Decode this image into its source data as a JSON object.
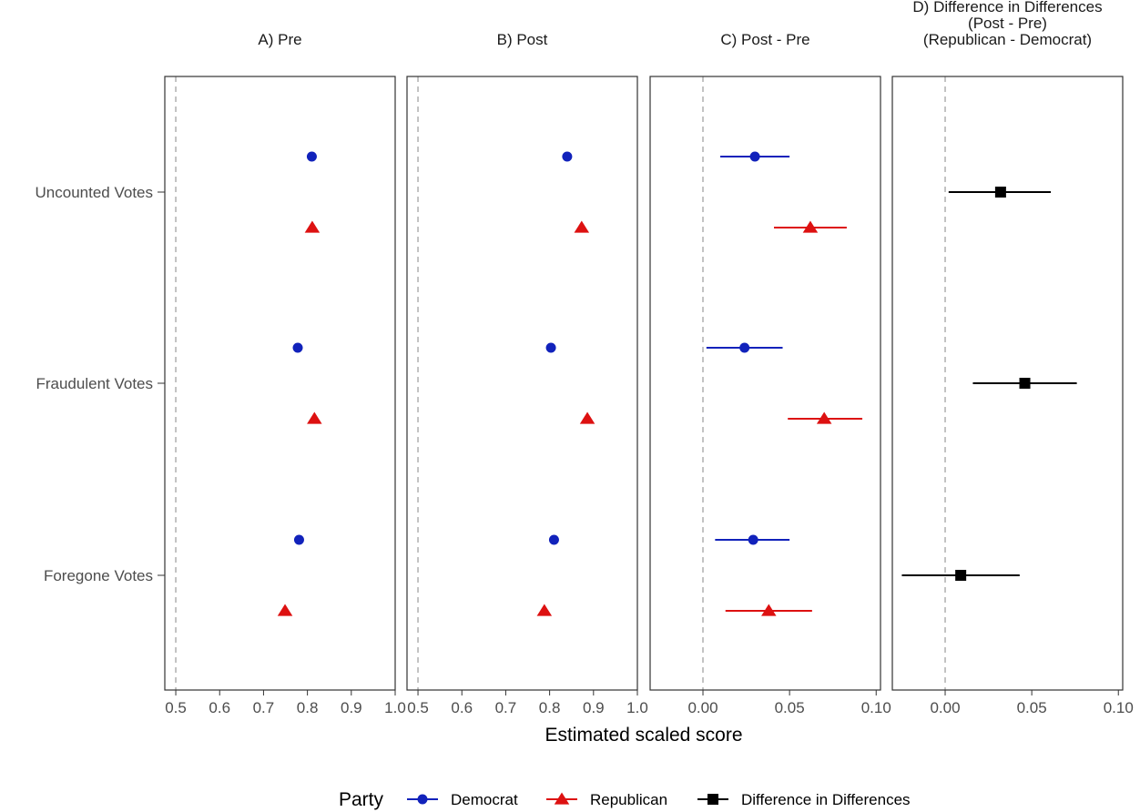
{
  "chart_data": {
    "type": "scatter",
    "xlabel": "Estimated scaled score",
    "categories": [
      "Uncounted Votes",
      "Fraudulent Votes",
      "Foregone Votes"
    ],
    "legend": {
      "title": "Party",
      "position": "bottom",
      "entries": [
        {
          "name": "Democrat",
          "color": "#1122bb",
          "shape": "circle"
        },
        {
          "name": "Republican",
          "color": "#dd1111",
          "shape": "triangle"
        },
        {
          "name": "Difference in Differences",
          "color": "#000000",
          "shape": "square"
        }
      ]
    },
    "grid": false,
    "panels": [
      {
        "title_lines": [
          "A) Pre"
        ],
        "xlim": [
          0.475,
          1.0
        ],
        "xticks": [
          0.5,
          0.6,
          0.7,
          0.8,
          0.9,
          1.0
        ],
        "xtick_labels": [
          "0.5",
          "0.6",
          "0.7",
          "0.8",
          "0.9",
          "1.0"
        ],
        "reference_line": 0.5,
        "series": [
          {
            "name": "Democrat",
            "values": [
              0.81,
              0.778,
              0.781
            ],
            "low": [
              null,
              null,
              null
            ],
            "high": [
              null,
              null,
              null
            ]
          },
          {
            "name": "Republican",
            "values": [
              0.811,
              0.816,
              0.749
            ],
            "low": [
              null,
              null,
              null
            ],
            "high": [
              null,
              null,
              null
            ]
          }
        ]
      },
      {
        "title_lines": [
          "B) Post"
        ],
        "xlim": [
          0.475,
          1.0
        ],
        "xticks": [
          0.5,
          0.6,
          0.7,
          0.8,
          0.9,
          1.0
        ],
        "xtick_labels": [
          "0.5",
          "0.6",
          "0.7",
          "0.8",
          "0.9",
          "1.0"
        ],
        "reference_line": 0.5,
        "series": [
          {
            "name": "Democrat",
            "values": [
              0.84,
              0.803,
              0.81
            ],
            "low": [
              null,
              null,
              null
            ],
            "high": [
              null,
              null,
              null
            ]
          },
          {
            "name": "Republican",
            "values": [
              0.873,
              0.886,
              0.788
            ],
            "low": [
              null,
              null,
              null
            ],
            "high": [
              null,
              null,
              null
            ]
          }
        ]
      },
      {
        "title_lines": [
          "C) Post - Pre"
        ],
        "xlim": [
          -0.0305,
          0.1025
        ],
        "xticks": [
          0.0,
          0.05,
          0.1
        ],
        "xtick_labels": [
          "0.00",
          "0.05",
          "0.10"
        ],
        "reference_line": 0.0,
        "series": [
          {
            "name": "Democrat",
            "values": [
              0.03,
              0.024,
              0.029
            ],
            "low": [
              0.01,
              0.002,
              0.007
            ],
            "high": [
              0.05,
              0.046,
              0.05
            ]
          },
          {
            "name": "Republican",
            "values": [
              0.062,
              0.07,
              0.038
            ],
            "low": [
              0.041,
              0.049,
              0.013
            ],
            "high": [
              0.083,
              0.092,
              0.063
            ]
          }
        ]
      },
      {
        "title_lines": [
          "D) Difference in Differences",
          "(Post - Pre)",
          "(Republican - Democrat)"
        ],
        "xlim": [
          -0.0305,
          0.1025
        ],
        "xticks": [
          0.0,
          0.05,
          0.1
        ],
        "xtick_labels": [
          "0.00",
          "0.05",
          "0.10"
        ],
        "reference_line": 0.0,
        "series": [
          {
            "name": "Difference in Differences",
            "values": [
              0.032,
              0.046,
              0.009
            ],
            "low": [
              0.002,
              0.016,
              -0.025
            ],
            "high": [
              0.061,
              0.076,
              0.043
            ]
          }
        ]
      }
    ]
  }
}
